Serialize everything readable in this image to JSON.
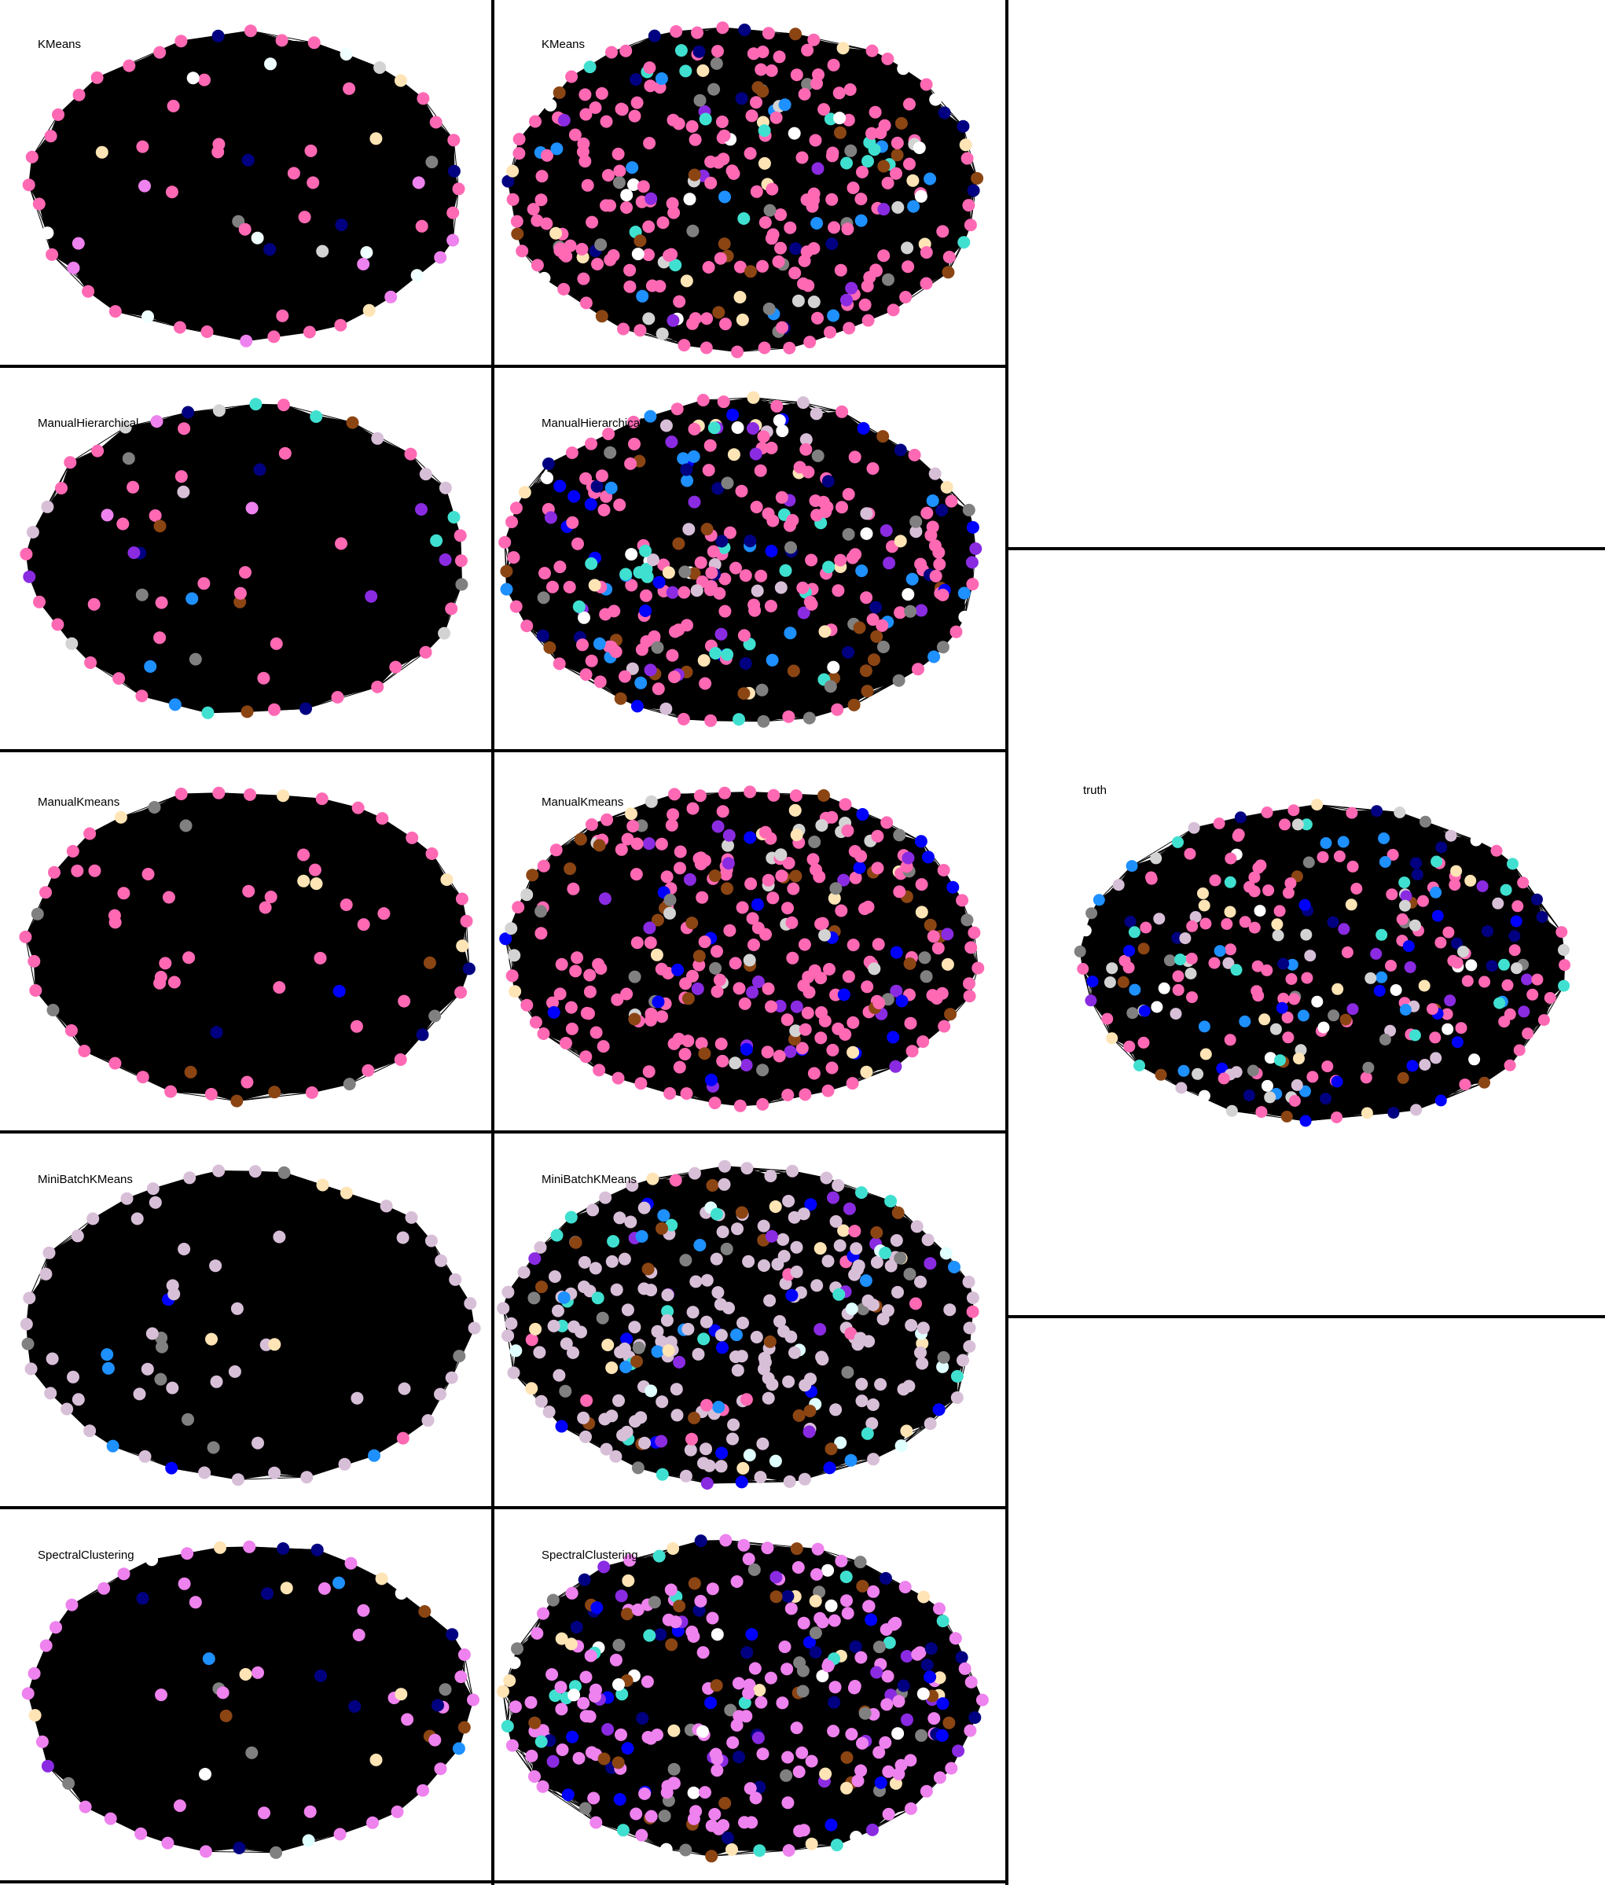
{
  "figure": {
    "panels": [
      {
        "id": "kmeans-small",
        "title": "KMeans"
      },
      {
        "id": "kmeans-large",
        "title": "KMeans"
      },
      {
        "id": "manualhier-small",
        "title": "ManualHierarchical"
      },
      {
        "id": "manualhier-large",
        "title": "ManualHierarchical"
      },
      {
        "id": "manualkmeans-small",
        "title": "ManualKmeans"
      },
      {
        "id": "manualkmeans-large",
        "title": "ManualKmeans"
      },
      {
        "id": "minibatch-small",
        "title": "MiniBatchKMeans"
      },
      {
        "id": "minibatch-large",
        "title": "MiniBatchKMeans"
      },
      {
        "id": "spectral-small",
        "title": "SpectralClustering"
      },
      {
        "id": "spectral-large",
        "title": "SpectralClustering"
      },
      {
        "id": "truth",
        "title": "truth"
      }
    ]
  },
  "palettes": {
    "kmeans-small": {
      "main": "#ff69b4",
      "others": [
        "#ee82ee",
        "#d3d3d3",
        "#808080",
        "#ffffff",
        "#000080",
        "#ffe4b5",
        "#f0ffff"
      ],
      "share": 0.6
    },
    "kmeans-large": {
      "main": "#ff69b4",
      "others": [
        "#d3d3d3",
        "#808080",
        "#1e90ff",
        "#000080",
        "#ffe4b5",
        "#8a2be2",
        "#ffffff",
        "#40e0d0",
        "#8b4513"
      ],
      "share": 0.6
    },
    "manualhier-small": {
      "main": "#ff69b4",
      "others": [
        "#d8bfd8",
        "#808080",
        "#d3d3d3",
        "#1e90ff",
        "#40e0d0",
        "#000080",
        "#ee82ee",
        "#8b4513",
        "#8a2be2"
      ],
      "share": 0.45
    },
    "manualhier-large": {
      "main": "#ff69b4",
      "others": [
        "#d8bfd8",
        "#808080",
        "#1e90ff",
        "#0000ff",
        "#40e0d0",
        "#ffffff",
        "#8b4513",
        "#ffe4b5",
        "#000080",
        "#8a2be2"
      ],
      "share": 0.45
    },
    "manualkmeans-small": {
      "main": "#ff69b4",
      "others": [
        "#8b4513",
        "#0000ff",
        "#ffe4b5",
        "#808080",
        "#000080"
      ],
      "share": 0.7
    },
    "manualkmeans-large": {
      "main": "#ff69b4",
      "others": [
        "#8b4513",
        "#0000ff",
        "#ffe4b5",
        "#808080",
        "#8a2be2",
        "#d3d3d3"
      ],
      "share": 0.65
    },
    "minibatch-small": {
      "main": "#d8bfd8",
      "others": [
        "#ff69b4",
        "#1e90ff",
        "#0000ff",
        "#ffe4b5",
        "#808080"
      ],
      "share": 0.65
    },
    "minibatch-large": {
      "main": "#d8bfd8",
      "others": [
        "#0000ff",
        "#ffe4b5",
        "#1e90ff",
        "#8a2be2",
        "#e0ffff",
        "#40e0d0",
        "#8b4513",
        "#808080",
        "#ff69b4"
      ],
      "share": 0.6
    },
    "spectral-small": {
      "main": "#ee82ee",
      "others": [
        "#8a2be2",
        "#000080",
        "#808080",
        "#ffe4b5",
        "#ffffff",
        "#1e90ff",
        "#8b4513",
        "#e0ffff"
      ],
      "share": 0.45
    },
    "spectral-large": {
      "main": "#ee82ee",
      "others": [
        "#8a2be2",
        "#000080",
        "#808080",
        "#0000ff",
        "#ffffff",
        "#8b4513",
        "#ffe4b5",
        "#40e0d0"
      ],
      "share": 0.45
    },
    "truth": {
      "main": "#ff69b4",
      "others": [
        "#d8bfd8",
        "#1e90ff",
        "#808080",
        "#0000ff",
        "#ffffff",
        "#ffe4b5",
        "#8a2be2",
        "#000080",
        "#8b4513",
        "#40e0d0",
        "#d3d3d3"
      ],
      "share": 0.35
    }
  }
}
